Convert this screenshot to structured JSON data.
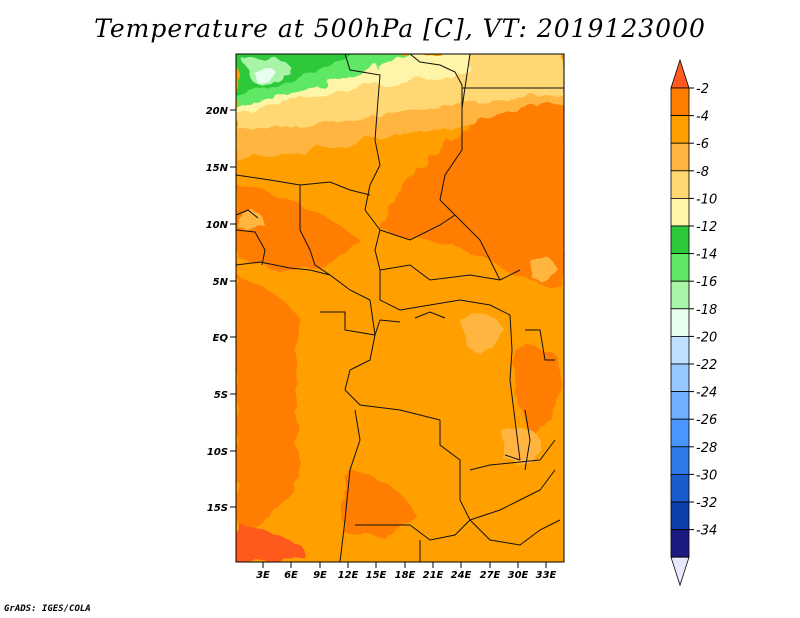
{
  "title": "Temperature at 500hPa [C], VT: 2019123000",
  "credit": "GrADS: IGES/COLA",
  "map": {
    "lat_labels": [
      "20N",
      "15N",
      "10N",
      "5N",
      "EQ",
      "5S",
      "10S",
      "15S"
    ],
    "lon_labels": [
      "3E",
      "6E",
      "9E",
      "12E",
      "15E",
      "18E",
      "21E",
      "24E",
      "27E",
      "30E",
      "33E"
    ]
  },
  "colorbar": {
    "labels": [
      "-2",
      "-4",
      "-6",
      "-8",
      "-10",
      "-12",
      "-14",
      "-16",
      "-18",
      "-20",
      "-22",
      "-24",
      "-26",
      "-28",
      "-30",
      "-32",
      "-34"
    ],
    "colors": [
      "#ff5a1f",
      "#ff7d00",
      "#ffa000",
      "#ffb540",
      "#ffd873",
      "#fff5a8",
      "#2dc93a",
      "#5ee863",
      "#a8f5a8",
      "#e8fff0",
      "#bde0ff",
      "#96c8ff",
      "#6eb0ff",
      "#4a96ff",
      "#2e7ae6",
      "#1a5ccc",
      "#0d3fa8",
      "#1a1a80",
      "#e8e8ff"
    ]
  }
}
